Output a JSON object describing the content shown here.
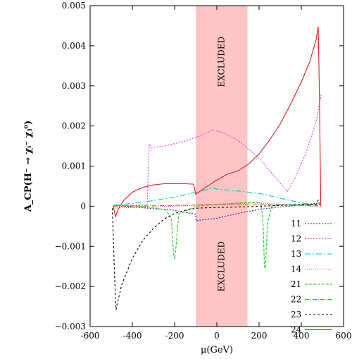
{
  "chart_data": {
    "type": "line",
    "xlabel": "μ(GeV)",
    "ylabel": "A_CP(H⁻ → χᵢ⁻ χⱼ⁰)",
    "xlim": [
      -600,
      600
    ],
    "ylim": [
      -0.003,
      0.005
    ],
    "xticks": [
      -600,
      -400,
      -200,
      0,
      200,
      400,
      600
    ],
    "xtick_labels": [
      "-600",
      "-400",
      "-200",
      "0",
      "200",
      "400",
      "600"
    ],
    "yticks": [
      -0.003,
      -0.002,
      -0.001,
      0,
      0.001,
      0.002,
      0.003,
      0.004,
      0.005
    ],
    "ytick_labels": [
      "−0.003",
      "−0.002",
      "−0.001",
      "0",
      "0.001",
      "0.002",
      "0.003",
      "0.004",
      "0.005"
    ],
    "grid": false,
    "legend_position": "bottom-right",
    "excluded_band": {
      "x_range": [
        -100,
        145
      ],
      "color": "#ffc4c4",
      "labels": [
        "EXCLUDED",
        "EXCLUDED"
      ]
    },
    "series": [
      {
        "name": "11",
        "color": "#2a1fc0",
        "dash": "2,2",
        "points": [
          [
            -490,
            2e-05
          ],
          [
            -400,
            -2e-05
          ],
          [
            -300,
            -6e-05
          ],
          [
            -200,
            -0.0001
          ],
          [
            -100,
            -0.0002
          ],
          [
            -99,
            -0.00036
          ],
          [
            0,
            -0.0003
          ],
          [
            100,
            -0.00018
          ],
          [
            200,
            -8e-05
          ],
          [
            300,
            -2e-05
          ],
          [
            400,
            3e-05
          ],
          [
            480,
            8e-05
          ]
        ]
      },
      {
        "name": "12",
        "color": "#e040e0",
        "dash": "2,2",
        "points": [
          [
            -490,
            2e-05
          ],
          [
            -400,
            2e-05
          ],
          [
            -330,
            3e-05
          ],
          [
            -320,
            0.00155
          ],
          [
            -310,
            0.00146
          ],
          [
            -250,
            0.0015
          ],
          [
            -150,
            0.00162
          ],
          [
            -60,
            0.0018
          ],
          [
            -20,
            0.0019
          ],
          [
            20,
            0.00185
          ],
          [
            100,
            0.00165
          ],
          [
            200,
            0.0012
          ],
          [
            280,
            0.0007
          ],
          [
            335,
            0.00037
          ],
          [
            370,
            0.0007
          ],
          [
            420,
            0.0013
          ],
          [
            470,
            0.0021
          ],
          [
            495,
            0.0028
          ]
        ]
      },
      {
        "name": "13",
        "color": "#00c8c8",
        "dash": "8,3,2,3",
        "points": [
          [
            -490,
            2e-05
          ],
          [
            -400,
            7e-05
          ],
          [
            -300,
            0.00014
          ],
          [
            -200,
            0.00023
          ],
          [
            -100,
            0.00035
          ],
          [
            -20,
            0.00045
          ],
          [
            0,
            0.00043
          ],
          [
            100,
            0.00038
          ],
          [
            200,
            0.00032
          ],
          [
            300,
            0.0002
          ],
          [
            400,
            8e-05
          ],
          [
            480,
            2e-05
          ]
        ]
      },
      {
        "name": "14",
        "color": "#a040a0",
        "dash": "1,2",
        "points": [
          [
            -490,
            -5e-05
          ],
          [
            -400,
            -3e-05
          ],
          [
            -300,
            -2e-05
          ],
          [
            -200,
            0.0
          ],
          [
            -100,
            3e-05
          ],
          [
            0,
            5e-05
          ],
          [
            100,
            7e-05
          ],
          [
            200,
            8e-05
          ],
          [
            300,
            5e-05
          ],
          [
            400,
            2e-05
          ],
          [
            480,
            -2e-05
          ]
        ]
      },
      {
        "name": "21",
        "color": "#20d020",
        "dash": "4,2",
        "points": [
          [
            -490,
            2e-05
          ],
          [
            -400,
            1e-05
          ],
          [
            -300,
            -3e-05
          ],
          [
            -240,
            -0.0001
          ],
          [
            -215,
            -0.0003
          ],
          [
            -205,
            -0.0012
          ],
          [
            -200,
            -0.00132
          ],
          [
            -195,
            -0.0011
          ],
          [
            -180,
            -0.0002
          ],
          [
            -100,
            0.0
          ],
          [
            0,
            4e-05
          ],
          [
            100,
            8e-05
          ],
          [
            190,
            0.0001
          ],
          [
            210,
            8e-05
          ],
          [
            220,
            -0.0005
          ],
          [
            225,
            -0.0015
          ],
          [
            230,
            -0.00155
          ],
          [
            240,
            -0.0004
          ],
          [
            260,
            0.0
          ],
          [
            300,
            3e-05
          ],
          [
            400,
            4e-05
          ],
          [
            480,
            3e-05
          ]
        ]
      },
      {
        "name": "22",
        "color": "#e06020",
        "dash": "6,2,1,2",
        "points": [
          [
            -490,
            0.0
          ],
          [
            -400,
            0.0
          ],
          [
            -300,
            1e-05
          ],
          [
            -200,
            2e-05
          ],
          [
            -100,
            3e-05
          ],
          [
            0,
            4e-05
          ],
          [
            100,
            4e-05
          ],
          [
            200,
            4e-05
          ],
          [
            300,
            3e-05
          ],
          [
            400,
            2e-05
          ],
          [
            480,
            1e-05
          ]
        ]
      },
      {
        "name": "23",
        "color": "#000000",
        "dash": "3,3",
        "points": [
          [
            -495,
            -5e-05
          ],
          [
            -490,
            -0.0008
          ],
          [
            -485,
            -0.0016
          ],
          [
            -480,
            -0.0023
          ],
          [
            -477,
            -0.00258
          ],
          [
            -470,
            -0.0024
          ],
          [
            -450,
            -0.00195
          ],
          [
            -400,
            -0.0013
          ],
          [
            -350,
            -0.00085
          ],
          [
            -300,
            -0.00055
          ],
          [
            -250,
            -0.00032
          ],
          [
            -200,
            -0.00018
          ],
          [
            -150,
            -0.0001
          ],
          [
            -100,
            -5e-05
          ],
          [
            0,
            -3e-05
          ],
          [
            100,
            -2e-05
          ],
          [
            200,
            0.0
          ],
          [
            300,
            2e-05
          ],
          [
            400,
            4e-05
          ],
          [
            470,
            5e-05
          ],
          [
            480,
            0.00015
          ],
          [
            488,
            0.0
          ]
        ]
      },
      {
        "name": "24",
        "color": "#e02020",
        "dash": "",
        "points": [
          [
            -490,
            0.0
          ],
          [
            -480,
            -0.00027
          ],
          [
            -470,
            -0.0001
          ],
          [
            -440,
            0.00015
          ],
          [
            -400,
            0.00035
          ],
          [
            -350,
            0.00047
          ],
          [
            -300,
            0.00053
          ],
          [
            -250,
            0.00056
          ],
          [
            -200,
            0.00056
          ],
          [
            -150,
            0.00056
          ],
          [
            -110,
            0.00055
          ],
          [
            -100,
            0.0003
          ],
          [
            -50,
            0.00048
          ],
          [
            0,
            0.00065
          ],
          [
            50,
            0.0008
          ],
          [
            100,
            0.00088
          ],
          [
            150,
            0.00105
          ],
          [
            200,
            0.0013
          ],
          [
            250,
            0.00165
          ],
          [
            300,
            0.00205
          ],
          [
            350,
            0.00255
          ],
          [
            400,
            0.0031
          ],
          [
            440,
            0.0036
          ],
          [
            470,
            0.00415
          ],
          [
            480,
            0.00448
          ],
          [
            485,
            0.003
          ],
          [
            490,
            0.001
          ],
          [
            492,
            0.0
          ]
        ]
      }
    ]
  }
}
